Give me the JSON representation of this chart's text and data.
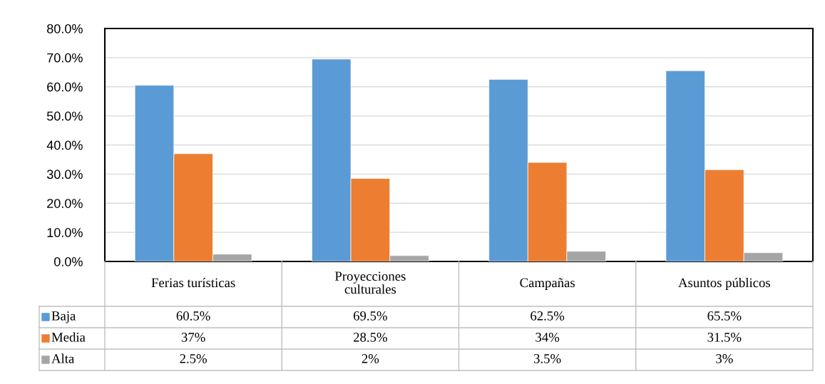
{
  "chart_data": {
    "type": "bar",
    "categories": [
      "Ferias turísticas",
      "Proyecciones\nculturales",
      "Campañas",
      "Asuntos públicos"
    ],
    "series": [
      {
        "name": "Baja",
        "color": "#5b9bd5",
        "values": [
          60.5,
          69.5,
          62.5,
          65.5
        ],
        "value_labels": [
          "60.5%",
          "69.5%",
          "62.5%",
          "65.5%"
        ]
      },
      {
        "name": "Media",
        "color": "#ed7d31",
        "values": [
          37,
          28.5,
          34,
          31.5
        ],
        "value_labels": [
          "37%",
          "28.5%",
          "34%",
          "31.5%"
        ]
      },
      {
        "name": "Alta",
        "color": "#a5a5a5",
        "values": [
          2.5,
          2,
          3.5,
          3
        ],
        "value_labels": [
          "2.5%",
          "2%",
          "3.5%",
          "3%"
        ]
      }
    ],
    "ylim": [
      0,
      80
    ],
    "yticks": [
      {
        "value": 0,
        "label": "0.0%"
      },
      {
        "value": 10,
        "label": "10.0%"
      },
      {
        "value": 20,
        "label": "20.0%"
      },
      {
        "value": 30,
        "label": "30.0%"
      },
      {
        "value": 40,
        "label": "40.0%"
      },
      {
        "value": 50,
        "label": "50.0%"
      },
      {
        "value": 60,
        "label": "60.0%"
      },
      {
        "value": 70,
        "label": "70.0%"
      },
      {
        "value": 80,
        "label": "80.0%"
      }
    ],
    "grid": "y",
    "legend": "bottom left"
  }
}
